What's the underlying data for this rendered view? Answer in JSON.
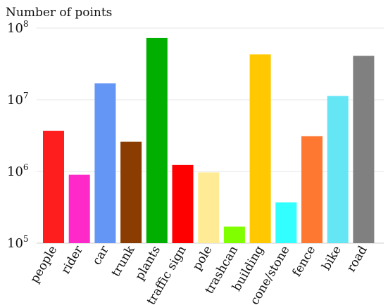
{
  "chart_data": {
    "type": "bar",
    "title": "",
    "xlabel": "",
    "ylabel": "Number of points",
    "yscale": "log",
    "ylim": [
      100000,
      100000000
    ],
    "grid": true,
    "y_ticks": [
      {
        "value": 100000,
        "base": "10",
        "exp": "5"
      },
      {
        "value": 1000000,
        "base": "10",
        "exp": "6"
      },
      {
        "value": 10000000,
        "base": "10",
        "exp": "7"
      },
      {
        "value": 100000000,
        "base": "10",
        "exp": "8"
      }
    ],
    "categories": [
      "people",
      "rider",
      "car",
      "trunk",
      "plants",
      "traffic sign",
      "pole",
      "trashcan",
      "building",
      "cone/stone",
      "fence",
      "bike",
      "road"
    ],
    "values": [
      3700000,
      900000,
      17000000,
      2600000,
      73000000,
      1230000,
      970000,
      170000,
      43000000,
      370000,
      3100000,
      11300000,
      41000000
    ],
    "colors": [
      "#ff1e1e",
      "#ff28c8",
      "#6496f5",
      "#8b3c00",
      "#00af00",
      "#ff0000",
      "#ffeb96",
      "#80ff00",
      "#ffc800",
      "#32ffff",
      "#ff7832",
      "#64e6f5",
      "#808080"
    ]
  }
}
